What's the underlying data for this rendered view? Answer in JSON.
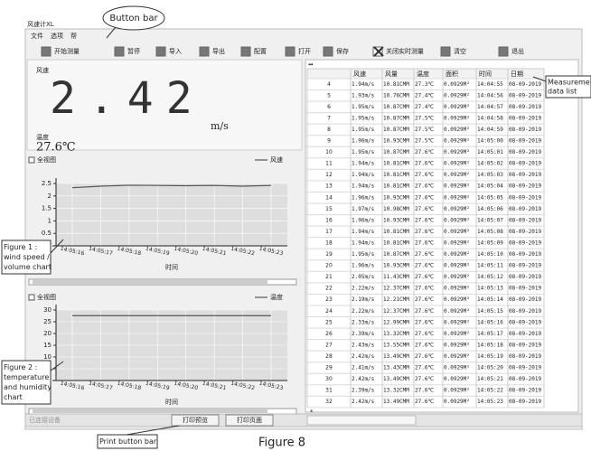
{
  "window": {
    "title": "风速计XL",
    "menu": [
      "文件",
      "选项",
      "帮"
    ],
    "toolbar": [
      "开始测量",
      "暂停",
      "导入",
      "导出",
      "配置",
      "打开",
      "保存",
      "关闭实时测量",
      "清空",
      "退出"
    ]
  },
  "display": {
    "speed_label": "风速",
    "speed_value": "2.42",
    "speed_unit": "m/s",
    "temp_label": "温度",
    "temp_value": "27.6℃"
  },
  "charts": [
    {
      "type": "line",
      "checkbox": "全视图",
      "legend": "风速",
      "xlabel": "时间",
      "categories": [
        "14:05:16",
        "14:05:17",
        "14:05:18",
        "14:05:19",
        "14:05:20",
        "14:05:21",
        "14:05:22",
        "14:05:23"
      ],
      "values": [
        2.33,
        2.39,
        2.43,
        2.42,
        2.41,
        2.42,
        2.39,
        2.42
      ],
      "ylim": [
        0,
        2.5
      ],
      "yticks": [
        0,
        0.5,
        1,
        1.5,
        2,
        2.5
      ],
      "color": "#555"
    },
    {
      "type": "line",
      "checkbox": "全视图",
      "legend": "温度",
      "xlabel": "时间",
      "categories": [
        "14:05:16",
        "14:05:17",
        "14:05:18",
        "14:05:19",
        "14:05:20",
        "14:05:21",
        "14:05:22",
        "14:05:23"
      ],
      "values": [
        27.6,
        27.6,
        27.6,
        27.6,
        27.6,
        27.6,
        27.6,
        27.6
      ],
      "ylim": [
        0,
        30
      ],
      "yticks": [
        0,
        5,
        10,
        15,
        20,
        25,
        30
      ],
      "color": "#555"
    }
  ],
  "table": {
    "corner": "◂◂",
    "columns": [
      "风速",
      "风量",
      "温度",
      "面积",
      "时间",
      "日期"
    ],
    "new_row": "*",
    "rows": [
      [
        "4",
        "1.94m/s",
        "10.81CMM",
        "27.3℃",
        "0.0929M²",
        "14:04:55",
        "08-09-2019"
      ],
      [
        "5",
        "1.93m/s",
        "10.76CMM",
        "27.4℃",
        "0.0929M²",
        "14:04:56",
        "08-09-2019"
      ],
      [
        "6",
        "1.95m/s",
        "10.87CMM",
        "27.4℃",
        "0.0929M²",
        "14:04:57",
        "08-09-2019"
      ],
      [
        "7",
        "1.95m/s",
        "10.87CMM",
        "27.5℃",
        "0.0929M²",
        "14:04:58",
        "08-09-2019"
      ],
      [
        "8",
        "1.95m/s",
        "10.87CMM",
        "27.5℃",
        "0.0929M²",
        "14:04:59",
        "08-09-2019"
      ],
      [
        "9",
        "1.96m/s",
        "10.93CMM",
        "27.5℃",
        "0.0929M²",
        "14:05:00",
        "08-09-2019"
      ],
      [
        "10",
        "1.95m/s",
        "10.87CMM",
        "27.6℃",
        "0.0929M²",
        "14:05:01",
        "08-09-2019"
      ],
      [
        "11",
        "1.94m/s",
        "10.81CMM",
        "27.6℃",
        "0.0929M²",
        "14:05:02",
        "08-09-2019"
      ],
      [
        "12",
        "1.94m/s",
        "10.81CMM",
        "27.6℃",
        "0.0929M²",
        "14:05:03",
        "08-09-2019"
      ],
      [
        "13",
        "1.94m/s",
        "10.81CMM",
        "27.6℃",
        "0.0929M²",
        "14:05:04",
        "08-09-2019"
      ],
      [
        "14",
        "1.96m/s",
        "10.93CMM",
        "27.6℃",
        "0.0929M²",
        "14:05:05",
        "08-09-2019"
      ],
      [
        "15",
        "1.97m/s",
        "10.98CMM",
        "27.6℃",
        "0.0929M²",
        "14:05:06",
        "08-09-2019"
      ],
      [
        "16",
        "1.96m/s",
        "10.93CMM",
        "27.6℃",
        "0.0929M²",
        "14:05:07",
        "08-09-2019"
      ],
      [
        "17",
        "1.94m/s",
        "10.81CMM",
        "27.6℃",
        "0.0929M²",
        "14:05:08",
        "08-09-2019"
      ],
      [
        "18",
        "1.94m/s",
        "10.81CMM",
        "27.6℃",
        "0.0929M²",
        "14:05:09",
        "08-09-2019"
      ],
      [
        "19",
        "1.95m/s",
        "10.87CMM",
        "27.6℃",
        "0.0929M²",
        "14:05:10",
        "08-09-2019"
      ],
      [
        "20",
        "1.96m/s",
        "10.93CMM",
        "27.6℃",
        "0.0929M²",
        "14:05:11",
        "08-09-2019"
      ],
      [
        "21",
        "2.05m/s",
        "11.43CMM",
        "27.6℃",
        "0.0929M²",
        "14:05:12",
        "08-09-2019"
      ],
      [
        "22",
        "2.22m/s",
        "12.37CMM",
        "27.6℃",
        "0.0929M²",
        "14:05:13",
        "08-09-2019"
      ],
      [
        "23",
        "2.19m/s",
        "12.21CMM",
        "27.6℃",
        "0.0929M²",
        "14:05:14",
        "08-09-2019"
      ],
      [
        "24",
        "2.22m/s",
        "12.37CMM",
        "27.6℃",
        "0.0929M²",
        "14:05:15",
        "08-09-2019"
      ],
      [
        "25",
        "2.33m/s",
        "12.99CMM",
        "27.6℃",
        "0.0929M²",
        "14:05:16",
        "08-09-2019"
      ],
      [
        "26",
        "2.39m/s",
        "13.32CMM",
        "27.6℃",
        "0.0929M²",
        "14:05:17",
        "08-09-2019"
      ],
      [
        "27",
        "2.43m/s",
        "13.55CMM",
        "27.6℃",
        "0.0929M²",
        "14:05:18",
        "08-09-2019"
      ],
      [
        "28",
        "2.42m/s",
        "13.49CMM",
        "27.6℃",
        "0.0929M²",
        "14:05:19",
        "08-09-2019"
      ],
      [
        "29",
        "2.41m/s",
        "13.43CMM",
        "27.6℃",
        "0.0929M²",
        "14:05:20",
        "08-09-2019"
      ],
      [
        "30",
        "2.42m/s",
        "13.49CMM",
        "27.6℃",
        "0.0929M²",
        "14:05:21",
        "08-09-2019"
      ],
      [
        "31",
        "2.39m/s",
        "13.32CMM",
        "27.6℃",
        "0.0929M²",
        "14:05:22",
        "08-09-2019"
      ],
      [
        "32",
        "2.42m/s",
        "13.49CMM",
        "27.6℃",
        "0.0929M²",
        "14:05:23",
        "08-09-2019"
      ]
    ]
  },
  "status": {
    "connection": "已连接设备",
    "buttons": [
      "打印预览",
      "打印页面"
    ]
  },
  "annotations": {
    "button_bar": "Button bar",
    "data_list": [
      "Measurement",
      "data list"
    ],
    "figure1": [
      "Figure 1 :",
      "wind speed /",
      "volume chart"
    ],
    "figure2": [
      "Figure 2 :",
      "temperature",
      "and humidity",
      "chart"
    ],
    "print_bar": "Print button bar",
    "caption": "Figure 8"
  }
}
